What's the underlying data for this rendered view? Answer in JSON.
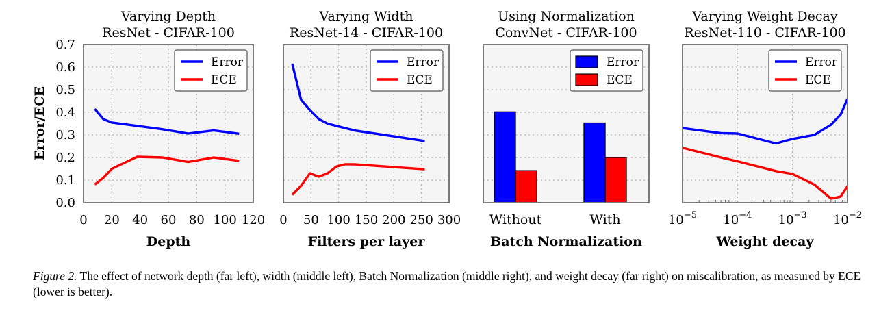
{
  "shared": {
    "ylabel": "Error/ECE"
  },
  "colors": {
    "error": "#0000ff",
    "ece": "#ff0000",
    "panel_bg": "#f5f5f5",
    "frame": "#7a7a7a",
    "grid": "#b3b3b3"
  },
  "chart_data": [
    {
      "type": "line",
      "title": "Varying Depth",
      "subtitle": "ResNet - CIFAR-100",
      "xlabel": "Depth",
      "ylabel": "Error/ECE",
      "xlim": [
        0,
        120
      ],
      "ylim": [
        0,
        0.7
      ],
      "xticks": [
        0,
        20,
        40,
        60,
        80,
        100,
        120
      ],
      "xtick_labels": [
        "0",
        "20",
        "40",
        "60",
        "80",
        "100",
        "120"
      ],
      "yticks": [
        0,
        0.1,
        0.2,
        0.3,
        0.4,
        0.5,
        0.6,
        0.7
      ],
      "ytick_labels": [
        "0.0",
        "0.1",
        "0.2",
        "0.3",
        "0.4",
        "0.5",
        "0.6",
        "0.7"
      ],
      "grid": true,
      "legend_position": "top-right",
      "series": [
        {
          "name": "Error",
          "x": [
            8,
            14,
            20,
            38,
            56,
            74,
            92,
            110
          ],
          "y": [
            0.415,
            0.37,
            0.355,
            0.34,
            0.325,
            0.306,
            0.32,
            0.305
          ]
        },
        {
          "name": "ECE",
          "x": [
            8,
            14,
            20,
            38,
            56,
            74,
            92,
            110
          ],
          "y": [
            0.08,
            0.11,
            0.15,
            0.203,
            0.2,
            0.18,
            0.2,
            0.185
          ]
        }
      ]
    },
    {
      "type": "line",
      "title": "Varying Width",
      "subtitle": "ResNet-14 - CIFAR-100",
      "xlabel": "Filters per layer",
      "xlim": [
        0,
        300
      ],
      "ylim": [
        0,
        0.7
      ],
      "xticks": [
        0,
        50,
        100,
        150,
        200,
        250,
        300
      ],
      "xtick_labels": [
        "0",
        "50",
        "100",
        "150",
        "200",
        "250",
        "300"
      ],
      "grid": true,
      "legend_position": "top-right",
      "series": [
        {
          "name": "Error",
          "x": [
            16,
            32,
            48,
            64,
            80,
            96,
            112,
            128,
            256
          ],
          "y": [
            0.615,
            0.455,
            0.41,
            0.37,
            0.35,
            0.34,
            0.33,
            0.32,
            0.273
          ]
        },
        {
          "name": "ECE",
          "x": [
            16,
            32,
            48,
            64,
            80,
            96,
            112,
            128,
            256
          ],
          "y": [
            0.035,
            0.075,
            0.13,
            0.115,
            0.13,
            0.16,
            0.17,
            0.17,
            0.148
          ]
        }
      ]
    },
    {
      "type": "bar",
      "title": "Using Normalization",
      "subtitle": "ConvNet - CIFAR-100",
      "xlabel": "Batch Normalization",
      "categories": [
        "Without",
        "With"
      ],
      "ylim": [
        0,
        0.7
      ],
      "grid": true,
      "legend_position": "top-right",
      "series": [
        {
          "name": "Error",
          "values": [
            0.402,
            0.353
          ]
        },
        {
          "name": "ECE",
          "values": [
            0.142,
            0.2
          ]
        }
      ]
    },
    {
      "type": "line",
      "title": "Varying Weight Decay",
      "subtitle": "ResNet-110 - CIFAR-100",
      "xlabel": "Weight decay",
      "xscale": "log",
      "xlim": [
        1e-05,
        0.01
      ],
      "ylim": [
        0,
        0.7
      ],
      "xticks": [
        1e-05,
        0.0001,
        0.001,
        0.01
      ],
      "xtick_labels": [
        {
          "base": "10",
          "exp": "−5"
        },
        {
          "base": "10",
          "exp": "−4"
        },
        {
          "base": "10",
          "exp": "−3"
        },
        {
          "base": "10",
          "exp": "−2"
        }
      ],
      "grid": true,
      "legend_position": "top-right",
      "series": [
        {
          "name": "Error",
          "x": [
            1e-05,
            5e-05,
            0.0001,
            0.0005,
            0.001,
            0.0025,
            0.005,
            0.0075,
            0.01
          ],
          "y": [
            0.33,
            0.308,
            0.306,
            0.262,
            0.282,
            0.3,
            0.345,
            0.39,
            0.46
          ]
        },
        {
          "name": "ECE",
          "x": [
            1e-05,
            5e-05,
            0.0001,
            0.0005,
            0.001,
            0.0025,
            0.005,
            0.0075,
            0.01
          ],
          "y": [
            0.243,
            0.2,
            0.183,
            0.14,
            0.127,
            0.08,
            0.018,
            0.027,
            0.073
          ]
        }
      ]
    }
  ],
  "caption": {
    "label": "Figure 2.",
    "text": " The effect of network depth (far left), width (middle left), Batch Normalization (middle right), and weight decay (far right) on miscalibration, as measured by ECE (lower is better)."
  }
}
